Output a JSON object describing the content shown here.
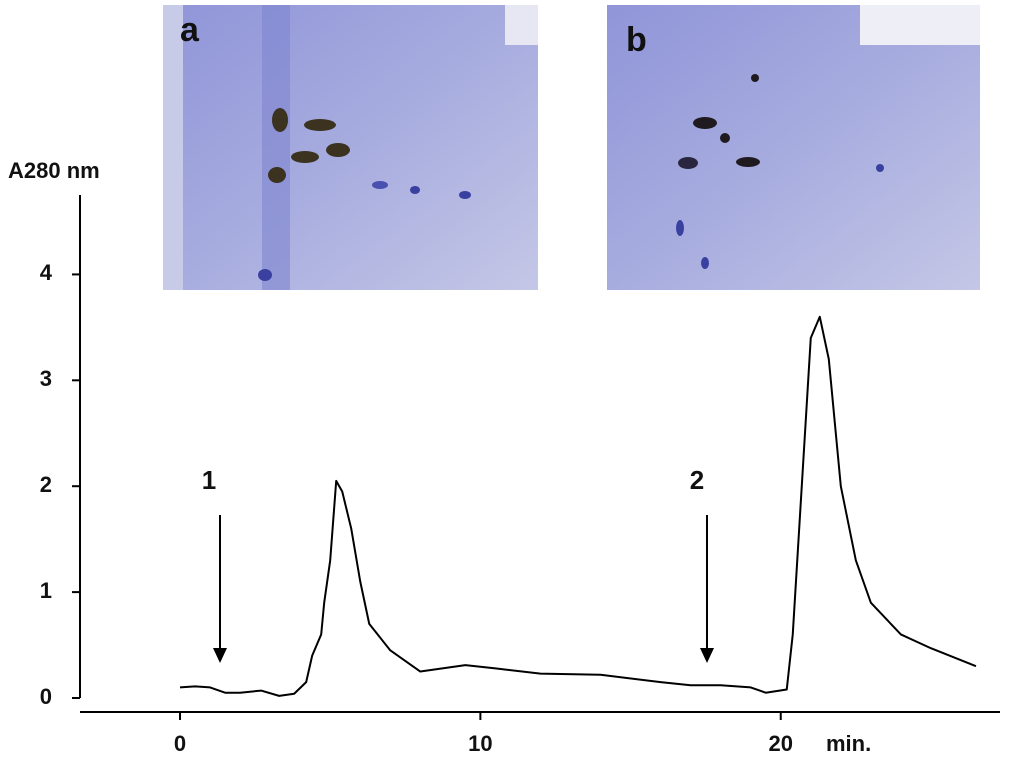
{
  "chart_data": {
    "type": "line",
    "y_label": "A280 nm",
    "x_label": "min.",
    "panels": [
      "a",
      "b"
    ],
    "annotations": [
      "1",
      "2"
    ],
    "x": [
      0,
      0.5,
      1,
      1.5,
      2,
      2.7,
      3.3,
      3.8,
      4.2,
      4.4,
      4.7,
      4.8,
      5.0,
      5.2,
      5.4,
      5.7,
      6.0,
      6.3,
      7,
      8,
      8.5,
      9.5,
      10.5,
      12,
      14,
      16,
      17,
      18,
      19,
      19.5,
      20.2,
      20.4,
      20.7,
      21.0,
      21.3,
      21.6,
      22.0,
      22.5,
      23,
      24,
      25,
      26.5
    ],
    "values": [
      0.1,
      0.11,
      0.1,
      0.05,
      0.05,
      0.07,
      0.02,
      0.04,
      0.15,
      0.4,
      0.6,
      0.9,
      1.3,
      2.05,
      1.95,
      1.6,
      1.1,
      0.7,
      0.45,
      0.25,
      0.27,
      0.31,
      0.28,
      0.23,
      0.22,
      0.15,
      0.12,
      0.12,
      0.1,
      0.05,
      0.08,
      0.6,
      2.0,
      3.4,
      3.6,
      3.2,
      2.0,
      1.3,
      0.9,
      0.6,
      0.47,
      0.3
    ],
    "color": "#000000",
    "xlim": [
      -3.33,
      27.3
    ],
    "ylim": [
      0,
      4.75
    ],
    "xticks": [
      0,
      10,
      20
    ],
    "yticks": [
      0,
      1,
      2,
      3,
      4
    ]
  }
}
